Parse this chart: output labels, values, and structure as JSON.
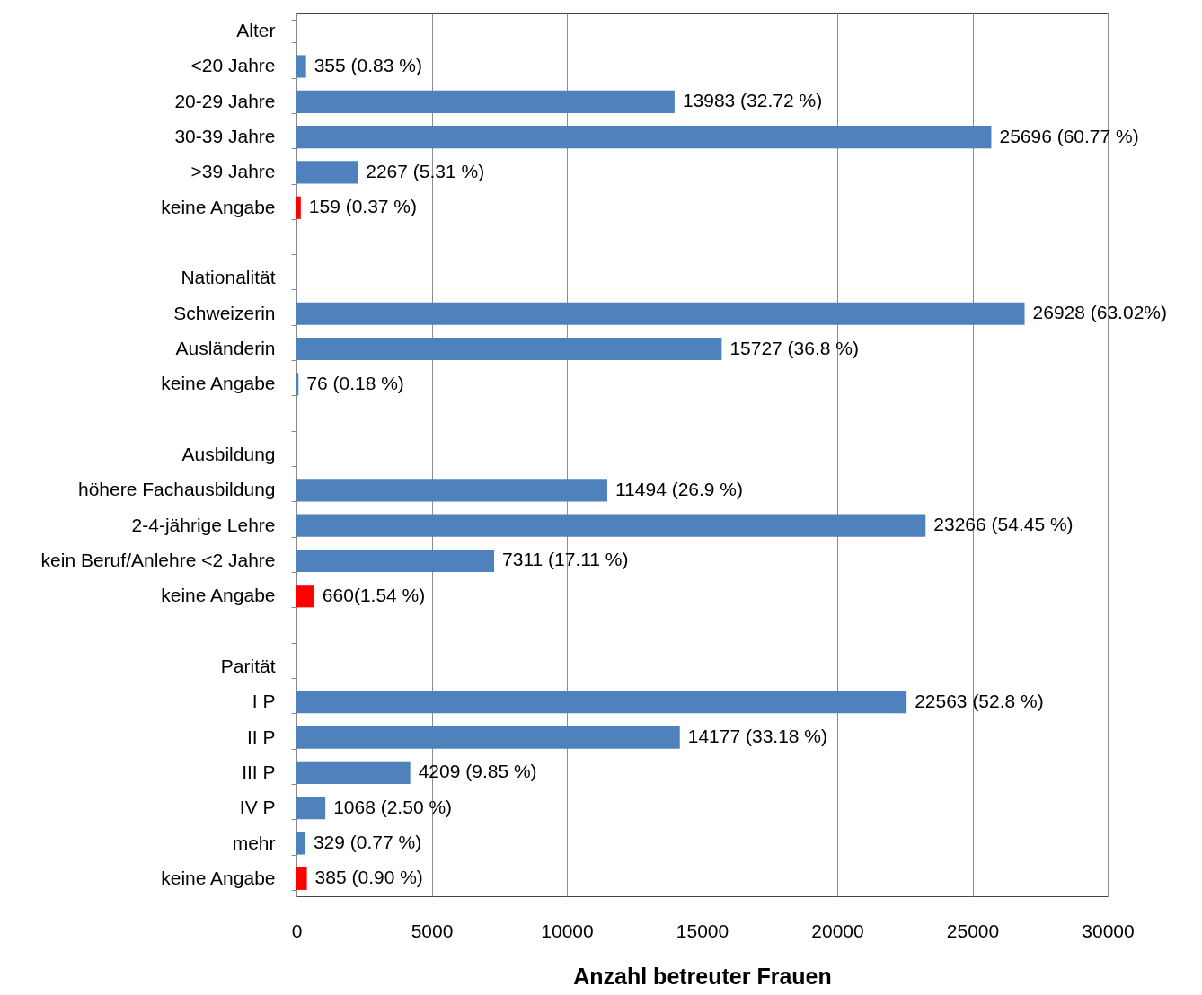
{
  "chart_data": {
    "type": "bar",
    "orientation": "horizontal",
    "xlabel": "Anzahl betreuter Frauen",
    "categories": [
      "Alter",
      "<20 Jahre",
      "20-29 Jahre",
      "30-39 Jahre",
      ">39 Jahre",
      "keine Angabe",
      null,
      "Nationalität",
      "Schweizerin",
      "Ausländerin",
      "keine Angabe",
      null,
      "Ausbildung",
      "höhere Fachausbildung",
      "2-4-jährige Lehre",
      "kein Beruf/Anlehre <2 Jahre",
      "keine Angabe",
      null,
      "Parität",
      "I P",
      "II P",
      "III P",
      "IV P",
      "mehr",
      "keine Angabe"
    ],
    "values": [
      null,
      355,
      13983,
      25696,
      2267,
      159,
      null,
      null,
      26928,
      15727,
      76,
      null,
      null,
      11494,
      23266,
      7311,
      660,
      null,
      null,
      22563,
      14177,
      4209,
      1068,
      329,
      385
    ],
    "value_labels": [
      null,
      "355 (0.83 %)",
      "13983 (32.72 %)",
      "25696 (60.77 %)",
      "2267 (5.31 %)",
      "159 (0.37 %)",
      null,
      null,
      "26928 (63.02%)",
      "15727 (36.8 %)",
      "76 (0.18 %)",
      null,
      null,
      "11494 (26.9 %)",
      "23266 (54.45 %)",
      "7311 (17.11 %)",
      "660(1.54 %)",
      null,
      null,
      "22563 (52.8 %)",
      "14177 (33.18 %)",
      "4209 (9.85 %)",
      "1068 (2.50 %)",
      "329 (0.77 %)",
      "385 (0.90 %)"
    ],
    "colors": [
      null,
      "#4f81bd",
      "#4f81bd",
      "#4f81bd",
      "#4f81bd",
      "#ff0000",
      null,
      null,
      "#4f81bd",
      "#4f81bd",
      "#4f81bd",
      null,
      null,
      "#4f81bd",
      "#4f81bd",
      "#4f81bd",
      "#ff0000",
      null,
      null,
      "#4f81bd",
      "#4f81bd",
      "#4f81bd",
      "#4f81bd",
      "#4f81bd",
      "#ff0000"
    ],
    "xlim": [
      0,
      30000
    ],
    "xticks": [
      0,
      5000,
      10000,
      15000,
      20000,
      25000,
      30000
    ],
    "grid": "x"
  }
}
